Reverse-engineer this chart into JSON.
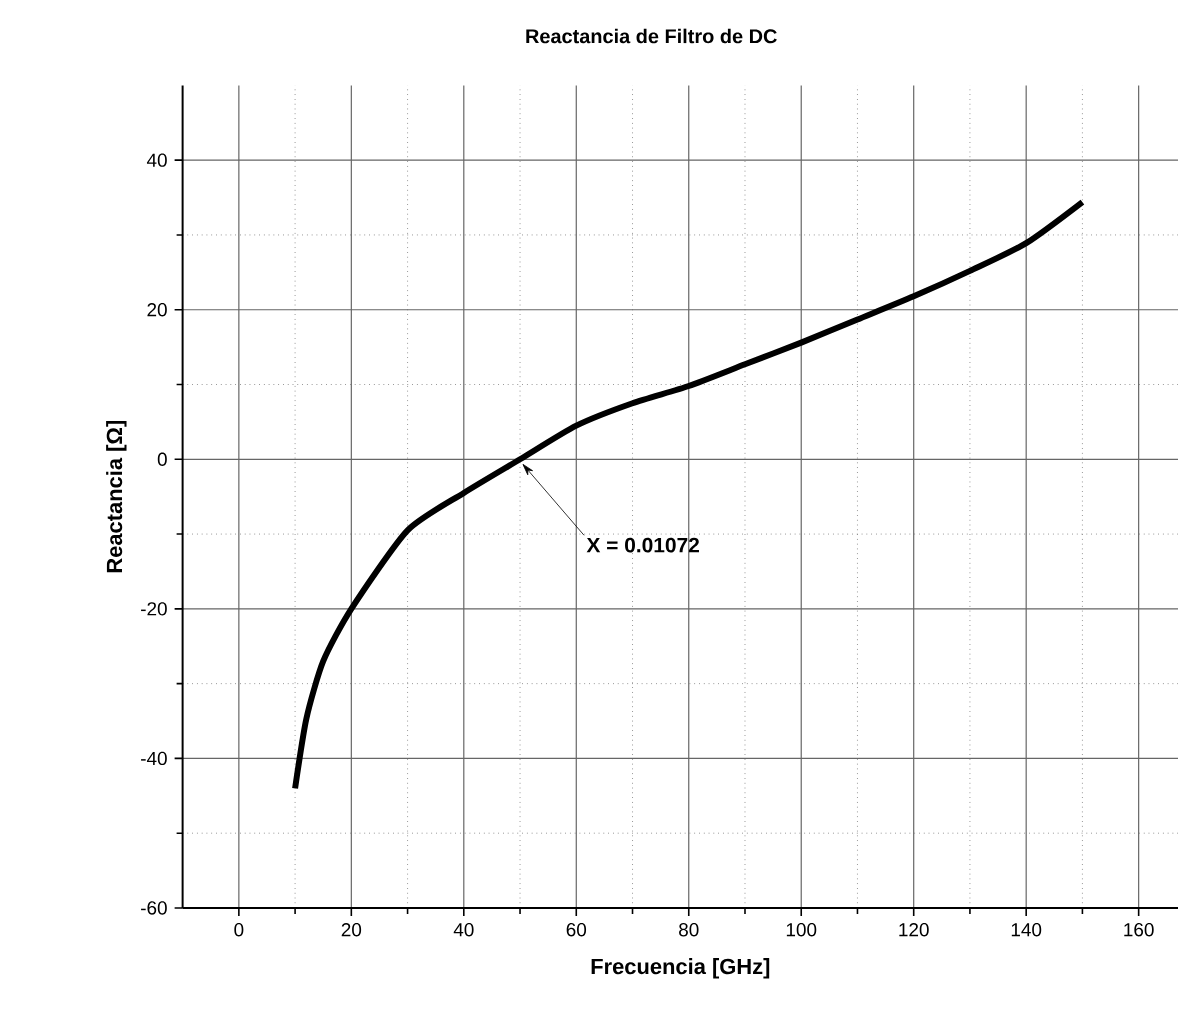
{
  "chart_data": {
    "type": "line",
    "title": "Reactancia de Filtro de DC",
    "xlabel": "Frecuencia [GHz]",
    "ylabel": "Reactancia [Ω]",
    "x": [
      10,
      12,
      15,
      20,
      30,
      40,
      50,
      60,
      70,
      80,
      90,
      100,
      110,
      120,
      130,
      140,
      150
    ],
    "series": [
      {
        "color": "#000000",
        "values": [
          -44,
          -34.7,
          -27,
          -20,
          -9.5,
          -4.5,
          0,
          4.5,
          7.5,
          9.8,
          12.7,
          15.6,
          18.7,
          21.8,
          25.2,
          28.9,
          34.4
        ]
      }
    ],
    "xlim": [
      -10,
      167
    ],
    "ylim": [
      -60,
      50
    ],
    "xticks": [
      0,
      20,
      40,
      60,
      80,
      100,
      120,
      140,
      160
    ],
    "yticks": [
      -60,
      -40,
      -20,
      0,
      20,
      40
    ],
    "grid": true,
    "marker": "none",
    "line_style": "solid",
    "annotations": [
      {
        "text": "X = 0.01072",
        "x": 50,
        "y": 0
      }
    ]
  }
}
